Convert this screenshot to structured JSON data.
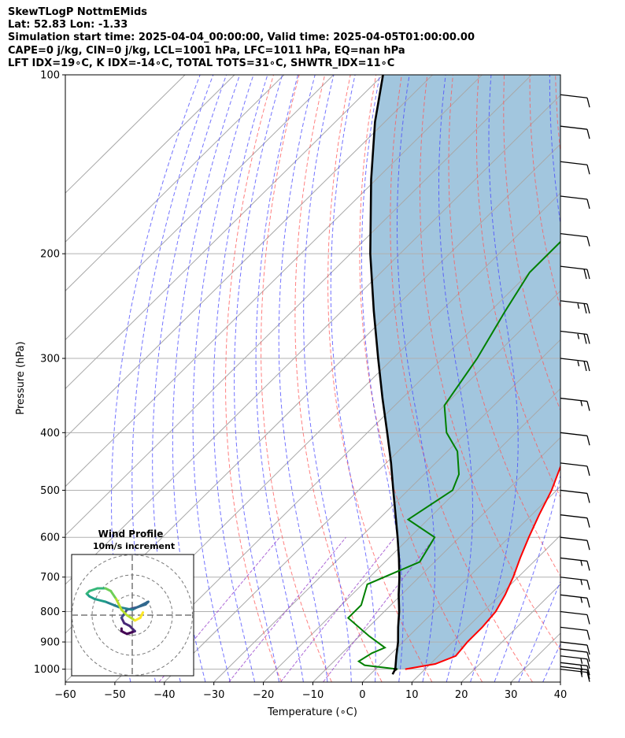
{
  "header": {
    "line1": "SkewTLogP NottmEMids",
    "line2": "Lat: 52.83   Lon: -1.33",
    "line3": "Simulation start time: 2025-04-04_00:00:00, Valid time: 2025-04-05T01:00:00.00",
    "line4": "CAPE=0 j/kg, CIN=0 j/kg, LCL=1001 hPa, LFC=1011 hPa, EQ=nan hPa",
    "line5": "LFT IDX=19∘C, K IDX=-14∘C, TOTAL TOTS=31∘C, SHWTR_IDX=11∘C"
  },
  "chart_data": {
    "type": "skew-t log-p",
    "xlabel": "Temperature (∘C)",
    "ylabel": "Pressure (hPa)",
    "xlim": [
      -60,
      40
    ],
    "ylim": [
      1050,
      100
    ],
    "x_ticks": [
      "−60",
      "−50",
      "−40",
      "−30",
      "−20",
      "−10",
      "0",
      "10",
      "20",
      "30",
      "40"
    ],
    "y_ticks": [
      "100",
      "200",
      "300",
      "400",
      "500",
      "600",
      "700",
      "800",
      "900",
      "1000"
    ],
    "grid": true,
    "temperature_color": "#ff0000",
    "dewpoint_color": "#008000",
    "parcel_color": "#000000",
    "shade_color": "#a2c6de",
    "dry_adiabat_color": "#ff5555",
    "moist_adiabat_color": "#4444ff",
    "mixing_ratio_color": "#9944cc",
    "isotherm_color": "#a8a8a8",
    "temperature": [
      [
        1000,
        6
      ],
      [
        980,
        11
      ],
      [
        950,
        13.5
      ],
      [
        900,
        13
      ],
      [
        850,
        13
      ],
      [
        800,
        12.5
      ],
      [
        750,
        11
      ],
      [
        700,
        9
      ],
      [
        650,
        6.5
      ],
      [
        600,
        4
      ],
      [
        550,
        1.5
      ],
      [
        500,
        -1
      ],
      [
        450,
        -4.5
      ],
      [
        400,
        -8.5
      ],
      [
        350,
        -12
      ],
      [
        300,
        -17
      ],
      [
        250,
        -22
      ],
      [
        220,
        -25
      ],
      [
        200,
        -25
      ],
      [
        180,
        -23
      ],
      [
        160,
        -21
      ],
      [
        150,
        -21
      ],
      [
        135,
        -19
      ],
      [
        120,
        -17
      ],
      [
        110,
        -15
      ],
      [
        100,
        -14
      ]
    ],
    "dewpoint": [
      [
        1000,
        4.5
      ],
      [
        985,
        -3
      ],
      [
        970,
        -5
      ],
      [
        940,
        -4
      ],
      [
        920,
        -2.5
      ],
      [
        880,
        -8
      ],
      [
        820,
        -16
      ],
      [
        780,
        -16
      ],
      [
        720,
        -19
      ],
      [
        660,
        -13
      ],
      [
        600,
        -15
      ],
      [
        560,
        -24
      ],
      [
        500,
        -21
      ],
      [
        470,
        -23
      ],
      [
        430,
        -28
      ],
      [
        400,
        -34
      ],
      [
        360,
        -40
      ],
      [
        300,
        -43
      ],
      [
        250,
        -47
      ],
      [
        215,
        -50
      ],
      [
        190,
        -50
      ],
      [
        170,
        -54
      ],
      [
        155,
        -58
      ],
      [
        140,
        -58
      ],
      [
        120,
        -55
      ],
      [
        100,
        -48
      ]
    ],
    "parcel": [
      [
        1020,
        4.5
      ],
      [
        1000,
        4
      ],
      [
        950,
        1.5
      ],
      [
        900,
        -1
      ],
      [
        850,
        -4
      ],
      [
        800,
        -7
      ],
      [
        750,
        -10.5
      ],
      [
        700,
        -14
      ],
      [
        650,
        -18
      ],
      [
        600,
        -22.5
      ],
      [
        550,
        -27.5
      ],
      [
        500,
        -33
      ],
      [
        450,
        -39
      ],
      [
        400,
        -46
      ],
      [
        350,
        -54
      ],
      [
        300,
        -63
      ],
      [
        250,
        -73.5
      ],
      [
        200,
        -86
      ],
      [
        150,
        -101
      ],
      [
        120,
        -112
      ],
      [
        100,
        -120
      ]
    ],
    "wind_barbs": [
      {
        "p": 1000,
        "speed_kt": 15
      },
      {
        "p": 990,
        "speed_kt": 15
      },
      {
        "p": 975,
        "speed_kt": 15
      },
      {
        "p": 950,
        "speed_kt": 15
      },
      {
        "p": 925,
        "speed_kt": 10
      },
      {
        "p": 900,
        "speed_kt": 10
      },
      {
        "p": 850,
        "speed_kt": 10
      },
      {
        "p": 800,
        "speed_kt": 10
      },
      {
        "p": 750,
        "speed_kt": 15
      },
      {
        "p": 700,
        "speed_kt": 15
      },
      {
        "p": 650,
        "speed_kt": 15
      },
      {
        "p": 600,
        "speed_kt": 10
      },
      {
        "p": 550,
        "speed_kt": 10
      },
      {
        "p": 500,
        "speed_kt": 10
      },
      {
        "p": 450,
        "speed_kt": 10
      },
      {
        "p": 400,
        "speed_kt": 10
      },
      {
        "p": 350,
        "speed_kt": 15
      },
      {
        "p": 300,
        "speed_kt": 25
      },
      {
        "p": 270,
        "speed_kt": 25
      },
      {
        "p": 240,
        "speed_kt": 25
      },
      {
        "p": 210,
        "speed_kt": 20
      },
      {
        "p": 185,
        "speed_kt": 10
      },
      {
        "p": 160,
        "speed_kt": 10
      },
      {
        "p": 140,
        "speed_kt": 10
      },
      {
        "p": 122,
        "speed_kt": 10
      },
      {
        "p": 108,
        "speed_kt": 10
      }
    ],
    "hodograph": {
      "title": "Wind Profile",
      "subtitle": "10m/s increment",
      "points": [
        [
          -4,
          -5
        ],
        [
          -4,
          -6
        ],
        [
          -2,
          -7
        ],
        [
          1,
          -6
        ],
        [
          -1,
          -4
        ],
        [
          -3,
          -3
        ],
        [
          -4,
          -1
        ],
        [
          -2,
          2
        ],
        [
          2,
          3
        ],
        [
          5,
          4
        ],
        [
          6,
          5
        ],
        [
          0,
          2
        ],
        [
          -5,
          3
        ],
        [
          -10,
          5
        ],
        [
          -14,
          6
        ],
        [
          -16,
          7
        ],
        [
          -17,
          8
        ],
        [
          -16,
          9
        ],
        [
          -13,
          10
        ],
        [
          -10,
          10
        ],
        [
          -8,
          9
        ],
        [
          -6,
          6
        ],
        [
          -4,
          2
        ],
        [
          -2,
          0
        ],
        [
          1,
          -2
        ],
        [
          3,
          -1
        ],
        [
          4,
          1
        ]
      ]
    }
  }
}
